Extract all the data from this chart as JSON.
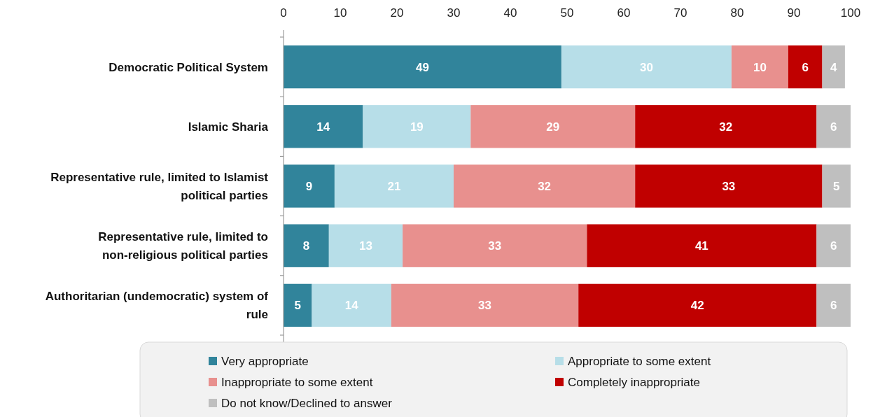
{
  "chart_data": {
    "type": "bar",
    "orientation": "horizontal",
    "stacked": true,
    "legend": "bottom",
    "grid": false,
    "categories": [
      "Democratic Political System",
      "Islamic Sharia",
      "Representative rule, limited to Islamist political parties",
      "Representative rule, limited to non-religious political parties",
      "Authoritarian (undemocratic) system of rule"
    ],
    "xlim": [
      0,
      100
    ],
    "xticks": [
      0,
      10,
      20,
      30,
      40,
      50,
      60,
      70,
      80,
      90,
      100
    ],
    "series": [
      {
        "name": "Very appropriate",
        "color": "#31849b",
        "values": [
          49,
          14,
          9,
          8,
          5
        ],
        "value_labels": [
          "49",
          "14",
          "9",
          "8",
          "5"
        ]
      },
      {
        "name": "Appropriate to some extent",
        "color": "#b7dee8",
        "values": [
          30,
          19,
          21,
          13,
          14
        ],
        "value_labels": [
          "30",
          "19",
          "21",
          "13",
          "14"
        ]
      },
      {
        "name": "Inappropriate to some extent",
        "color": "#e8908e",
        "values": [
          10,
          29,
          32,
          32.5,
          33
        ],
        "value_labels": [
          "10",
          "29",
          "32",
          "33",
          "33"
        ]
      },
      {
        "name": "Completely inappropriate",
        "color": "#c00000",
        "values": [
          6,
          32,
          33,
          40.5,
          42
        ],
        "value_labels": [
          "6",
          "32",
          "33",
          "41",
          "42"
        ]
      },
      {
        "name": "Do not know/Declined to answer",
        "color": "#bfbfbf",
        "values": [
          4,
          6,
          5,
          6,
          6
        ],
        "value_labels": [
          "4",
          "6",
          "5",
          "6",
          "6"
        ]
      }
    ]
  }
}
